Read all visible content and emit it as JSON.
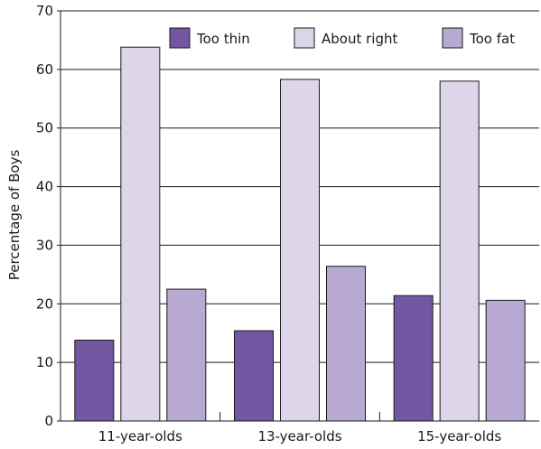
{
  "chart_data": {
    "type": "bar",
    "title": "",
    "xlabel": "",
    "ylabel": "Percentage of Boys",
    "ylim": [
      0,
      70
    ],
    "yticks": [
      0,
      10,
      20,
      30,
      40,
      50,
      60,
      70
    ],
    "grid": "horizontal",
    "legend_position": "top-right",
    "categories": [
      "11-year-olds",
      "13-year-olds",
      "15-year-olds"
    ],
    "series": [
      {
        "name": "Too thin",
        "color": "#7457a3",
        "values": [
          13.8,
          15.4,
          21.4
        ]
      },
      {
        "name": "About right",
        "color": "#ddd6ea",
        "values": [
          63.8,
          58.3,
          58.0
        ]
      },
      {
        "name": "Too fat",
        "color": "#b8a9d2",
        "values": [
          22.5,
          26.4,
          20.6
        ]
      }
    ]
  }
}
